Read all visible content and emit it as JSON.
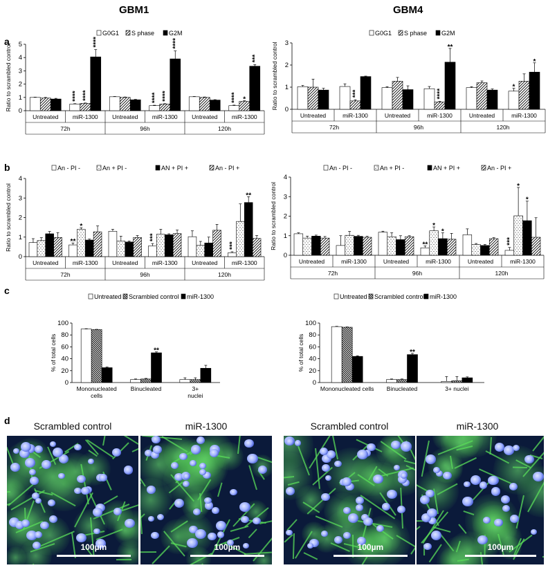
{
  "column_titles": [
    "GBM1",
    "GBM4"
  ],
  "panel_letters": [
    "a",
    "b",
    "c",
    "d"
  ],
  "colors": {
    "black": "#000000",
    "white": "#ffffff",
    "green": "#49d14a",
    "blue": "#5a6cff"
  },
  "chart_data": [
    {
      "id": "a-gbm1",
      "type": "bar",
      "ylabel": "Ratio to scrambled control",
      "ylim": [
        0,
        5
      ],
      "yticks": [
        0,
        1,
        2,
        3,
        4,
        5
      ],
      "series": [
        {
          "name": "G0G1",
          "pattern": "white"
        },
        {
          "name": "S phase",
          "pattern": "hatch"
        },
        {
          "name": "G2M",
          "pattern": "black"
        }
      ],
      "groups": [
        {
          "label": "Untreated",
          "values": [
            1.0,
            0.95,
            0.88
          ],
          "errors": [
            0.02,
            0.05,
            0.05
          ],
          "stars": [
            "",
            "",
            ""
          ]
        },
        {
          "label": "miR-1300",
          "values": [
            0.5,
            0.55,
            4.05
          ],
          "errors": [
            0.03,
            0.03,
            0.55
          ],
          "stars": [
            "****",
            "****",
            "****"
          ]
        },
        {
          "label": "Untreated",
          "values": [
            1.05,
            1.0,
            0.82
          ],
          "errors": [
            0.02,
            0.03,
            0.03
          ],
          "stars": [
            "",
            "",
            ""
          ]
        },
        {
          "label": "miR-1300",
          "values": [
            0.38,
            0.5,
            3.9
          ],
          "errors": [
            0.03,
            0.03,
            0.6
          ],
          "stars": [
            "****",
            "****",
            "****"
          ]
        },
        {
          "label": "Untreated",
          "values": [
            1.05,
            1.0,
            0.8
          ],
          "errors": [
            0.02,
            0.03,
            0.03
          ],
          "stars": [
            "",
            "",
            ""
          ]
        },
        {
          "label": "miR-1300",
          "values": [
            0.38,
            0.7,
            3.35
          ],
          "errors": [
            0.04,
            0.05,
            0.12
          ],
          "stars": [
            "****",
            "*",
            "***"
          ]
        }
      ],
      "time_labels": [
        "72h",
        "96h",
        "120h"
      ]
    },
    {
      "id": "a-gbm4",
      "type": "bar",
      "ylabel": "Ratio to scrambled control",
      "ylim": [
        0,
        3
      ],
      "yticks": [
        0,
        1,
        2,
        3
      ],
      "series": [
        {
          "name": "G0G1",
          "pattern": "white"
        },
        {
          "name": "S phase",
          "pattern": "hatch"
        },
        {
          "name": "G2M",
          "pattern": "black"
        }
      ],
      "groups": [
        {
          "label": "Untreated",
          "values": [
            1.02,
            1.0,
            0.87
          ],
          "errors": [
            0.06,
            0.36,
            0.08
          ],
          "stars": [
            "",
            "",
            ""
          ]
        },
        {
          "label": "miR-1300",
          "values": [
            1.03,
            0.38,
            1.48
          ],
          "errors": [
            0.12,
            0.05,
            0.02
          ],
          "stars": [
            "",
            "***",
            ""
          ]
        },
        {
          "label": "Untreated",
          "values": [
            0.98,
            1.27,
            0.89
          ],
          "errors": [
            0.04,
            0.17,
            0.17
          ],
          "stars": [
            "",
            "",
            ""
          ]
        },
        {
          "label": "miR-1300",
          "values": [
            0.93,
            0.33,
            2.13
          ],
          "errors": [
            0.1,
            0.03,
            0.62
          ],
          "stars": [
            "",
            "****",
            "**"
          ]
        },
        {
          "label": "Untreated",
          "values": [
            0.98,
            1.2,
            0.87
          ],
          "errors": [
            0.04,
            0.08,
            0.05
          ],
          "stars": [
            "",
            "",
            ""
          ]
        },
        {
          "label": "miR-1300",
          "values": [
            0.82,
            1.27,
            1.68
          ],
          "errors": [
            0.13,
            0.33,
            0.42
          ],
          "stars": [
            "*",
            "",
            "*"
          ]
        }
      ],
      "time_labels": [
        "72h",
        "96h",
        "120h"
      ]
    },
    {
      "id": "b-gbm1",
      "type": "bar",
      "ylabel": "Ratio to scrambled control",
      "ylim": [
        0,
        4
      ],
      "yticks": [
        0,
        1,
        2,
        3,
        4
      ],
      "series": [
        {
          "name": "An - PI -",
          "pattern": "white"
        },
        {
          "name": "An + PI -",
          "pattern": "dots"
        },
        {
          "name": "AN + PI +",
          "pattern": "black"
        },
        {
          "name": "An - PI +",
          "pattern": "hatch"
        }
      ],
      "groups": [
        {
          "label": "Untreated",
          "values": [
            0.72,
            0.82,
            1.17,
            0.98
          ],
          "errors": [
            0.2,
            0.15,
            0.12,
            0.25
          ],
          "stars": [
            "",
            "",
            "",
            ""
          ]
        },
        {
          "label": "miR-1300",
          "values": [
            0.6,
            1.4,
            0.85,
            1.27
          ],
          "errors": [
            0.1,
            0.08,
            0.05,
            0.3
          ],
          "stars": [
            "**",
            "*",
            "",
            ""
          ]
        },
        {
          "label": "Untreated",
          "values": [
            1.3,
            0.8,
            0.75,
            0.98
          ],
          "errors": [
            0.1,
            0.25,
            0.05,
            0.1
          ],
          "stars": [
            "",
            "",
            "",
            ""
          ]
        },
        {
          "label": "miR-1300",
          "values": [
            0.55,
            1.15,
            1.12,
            1.18
          ],
          "errors": [
            0.12,
            0.25,
            0.05,
            0.18
          ],
          "stars": [
            "***",
            "",
            "",
            ""
          ]
        },
        {
          "label": "Untreated",
          "values": [
            1.02,
            0.58,
            0.7,
            1.35
          ],
          "errors": [
            0.3,
            0.2,
            0.3,
            0.3
          ],
          "stars": [
            "",
            "",
            "",
            ""
          ]
        },
        {
          "label": "miR-1300",
          "values": [
            0.2,
            1.8,
            2.77,
            0.93
          ],
          "errors": [
            0.05,
            0.9,
            0.3,
            0.15
          ],
          "stars": [
            "***",
            "",
            "**",
            ""
          ]
        }
      ],
      "time_labels": [
        "72h",
        "96h",
        "120h"
      ]
    },
    {
      "id": "b-gbm4",
      "type": "bar",
      "ylabel": "Ratio to scrambled control",
      "ylim": [
        0,
        4
      ],
      "yticks": [
        0,
        1,
        2,
        3,
        4
      ],
      "series": [
        {
          "name": "An - PI -",
          "pattern": "white"
        },
        {
          "name": "An + PI -",
          "pattern": "dots"
        },
        {
          "name": "AN + PI +",
          "pattern": "black"
        },
        {
          "name": "An - PI +",
          "pattern": "hatch"
        }
      ],
      "groups": [
        {
          "label": "Untreated",
          "values": [
            1.1,
            0.88,
            0.98,
            0.88
          ],
          "errors": [
            0.05,
            0.1,
            0.05,
            0.08
          ],
          "stars": [
            "",
            "",
            "",
            ""
          ]
        },
        {
          "label": "miR-1300",
          "values": [
            0.5,
            1.02,
            0.97,
            0.92
          ],
          "errors": [
            0.5,
            0.2,
            0.05,
            0.05
          ],
          "stars": [
            "",
            "",
            "",
            ""
          ]
        },
        {
          "label": "Untreated",
          "values": [
            1.18,
            0.95,
            0.8,
            0.95
          ],
          "errors": [
            0.05,
            0.2,
            0.2,
            0.05
          ],
          "stars": [
            "",
            "",
            "",
            ""
          ]
        },
        {
          "label": "miR-1300",
          "values": [
            0.38,
            1.25,
            0.85,
            0.82
          ],
          "errors": [
            0.1,
            0.2,
            0.3,
            0.3
          ],
          "stars": [
            "**",
            "*",
            "*",
            ""
          ]
        },
        {
          "label": "Untreated",
          "values": [
            1.05,
            0.55,
            0.5,
            0.85
          ],
          "errors": [
            0.3,
            0.05,
            0.05,
            0.05
          ],
          "stars": [
            "",
            "",
            "",
            ""
          ]
        },
        {
          "label": "miR-1300",
          "values": [
            0.25,
            2.02,
            1.77,
            0.92
          ],
          "errors": [
            0.15,
            1.45,
            1.0,
            1.0
          ],
          "stars": [
            "***",
            "*",
            "*",
            ""
          ]
        }
      ],
      "time_labels": [
        "72h",
        "96h",
        "120h"
      ]
    },
    {
      "id": "c-gbm1",
      "type": "bar",
      "ylabel": "% of total cells",
      "ylim": [
        0,
        100
      ],
      "yticks": [
        0,
        20,
        40,
        60,
        80,
        100
      ],
      "series": [
        {
          "name": "Untreated",
          "pattern": "white"
        },
        {
          "name": "Scrambled control",
          "pattern": "dense"
        },
        {
          "name": "miR-1300",
          "pattern": "black"
        }
      ],
      "groups": [
        {
          "label": "Mononucleated cells",
          "values": [
            90,
            89,
            25
          ],
          "errors": [
            0.5,
            0.5,
            1
          ],
          "stars": [
            "",
            "",
            ""
          ]
        },
        {
          "label": "Binucleated",
          "values": [
            5,
            6,
            50
          ],
          "errors": [
            1,
            1,
            1.5
          ],
          "stars": [
            "",
            "",
            "**"
          ]
        },
        {
          "label": "3+ nuclei",
          "values": [
            5,
            5,
            24
          ],
          "errors": [
            3,
            3,
            5
          ],
          "stars": [
            "",
            "",
            ""
          ]
        }
      ]
    },
    {
      "id": "c-gbm4",
      "type": "bar",
      "ylabel": "% of total cells",
      "ylim": [
        0,
        100
      ],
      "yticks": [
        0,
        20,
        40,
        60,
        80,
        100
      ],
      "series": [
        {
          "name": "Untreated",
          "pattern": "white"
        },
        {
          "name": "Scrambled control",
          "pattern": "dense"
        },
        {
          "name": "miR-1300",
          "pattern": "black"
        }
      ],
      "groups": [
        {
          "label": "Mononucleated cells",
          "values": [
            94,
            93,
            44
          ],
          "errors": [
            0.5,
            0.5,
            1
          ],
          "stars": [
            "",
            "",
            ""
          ]
        },
        {
          "label": "Binucleated",
          "values": [
            5,
            5,
            47
          ],
          "errors": [
            1,
            1,
            2
          ],
          "stars": [
            "",
            "",
            "**"
          ]
        },
        {
          "label": "3+ nuclei",
          "values": [
            2,
            3,
            8
          ],
          "errors": [
            8,
            7,
            1.5
          ],
          "stars": [
            "",
            "",
            ""
          ]
        }
      ]
    }
  ],
  "micrographs": [
    {
      "title": "Scrambled control",
      "scale": "100µm"
    },
    {
      "title": "miR-1300",
      "scale": "100µm"
    },
    {
      "title": "Scrambled control",
      "scale": "100µm"
    },
    {
      "title": "miR-1300",
      "scale": "100µm"
    }
  ]
}
